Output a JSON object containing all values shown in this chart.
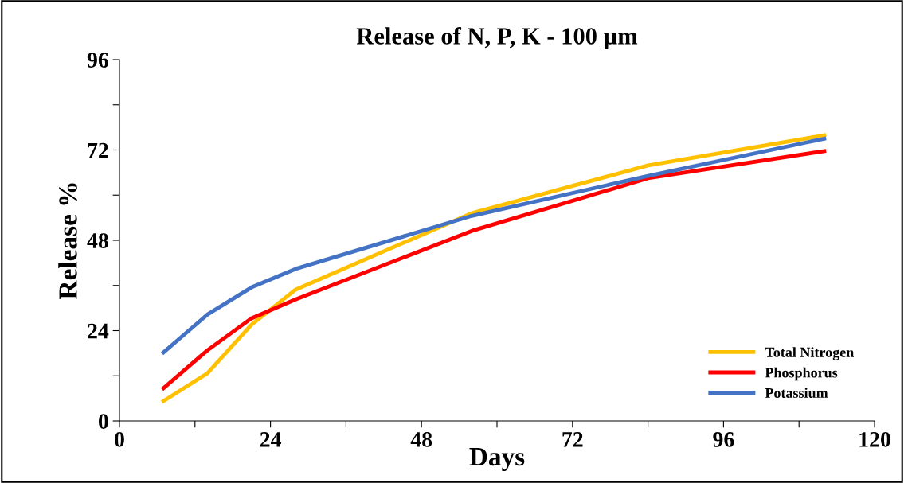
{
  "chart_data": {
    "type": "line",
    "title": "Release of N, P, K - 100 µm",
    "xlabel": "Days",
    "ylabel": "Release %",
    "x": [
      7,
      14,
      21,
      28,
      56,
      84,
      112
    ],
    "series": [
      {
        "name": "Total Nitrogen",
        "color": "#ffc000",
        "values": [
          5.3,
          12.7,
          25.6,
          34.9,
          55.2,
          67.9,
          75.9
        ]
      },
      {
        "name": "Phosphorus",
        "color": "#ff0000",
        "values": [
          8.7,
          18.8,
          27.3,
          32.3,
          50.5,
          64.5,
          71.7
        ]
      },
      {
        "name": "Potassium",
        "color": "#4472c4",
        "values": [
          18.2,
          28.3,
          35.5,
          40.4,
          54.5,
          65.1,
          75.0
        ]
      }
    ],
    "xlim": [
      0,
      120
    ],
    "xticks": [
      0,
      {
        "value": 12,
        "label": null
      },
      24,
      {
        "value": 36,
        "label": null
      },
      48,
      {
        "value": 60,
        "label": null
      },
      72,
      {
        "value": 84,
        "label": null
      },
      96,
      {
        "value": 108,
        "label": null
      },
      120
    ],
    "ylim": [
      0,
      96
    ],
    "yticks": [
      0,
      {
        "value": 12,
        "label": null
      },
      24,
      {
        "value": 36,
        "label": null
      },
      48,
      {
        "value": 60,
        "label": null
      },
      72,
      {
        "value": 84,
        "label": null
      },
      96
    ],
    "grid": false,
    "legend": "bottom right",
    "marker": "none",
    "line_style": "solid"
  }
}
